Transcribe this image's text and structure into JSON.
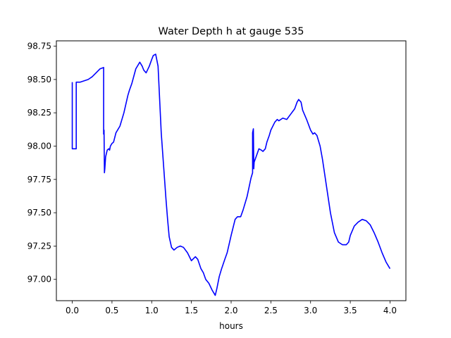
{
  "chart_data": {
    "type": "line",
    "title": "Water Depth h at gauge 535",
    "xlabel": "hours",
    "ylabel": "",
    "xlim": [
      -0.2,
      4.2
    ],
    "ylim": [
      96.84,
      98.79
    ],
    "xticks": [
      0.0,
      0.5,
      1.0,
      1.5,
      2.0,
      2.5,
      3.0,
      3.5,
      4.0
    ],
    "xtick_labels": [
      "0.0",
      "0.5",
      "1.0",
      "1.5",
      "2.0",
      "2.5",
      "3.0",
      "3.5",
      "4.0"
    ],
    "yticks": [
      97.0,
      97.25,
      97.5,
      97.75,
      98.0,
      98.25,
      98.5,
      98.75
    ],
    "ytick_labels": [
      "97.00",
      "97.25",
      "97.50",
      "97.75",
      "98.00",
      "98.25",
      "98.50",
      "98.75"
    ],
    "grid": false,
    "series": [
      {
        "color": "#0000ff",
        "x": [
          0.0,
          0.0,
          0.05,
          0.05,
          0.1,
          0.2,
          0.25,
          0.3,
          0.35,
          0.395,
          0.395,
          0.4,
          0.405,
          0.41,
          0.42,
          0.44,
          0.46,
          0.47,
          0.48,
          0.5,
          0.52,
          0.55,
          0.6,
          0.65,
          0.7,
          0.72,
          0.75,
          0.8,
          0.85,
          0.88,
          0.9,
          0.93,
          0.97,
          1.0,
          1.02,
          1.05,
          1.08,
          1.1,
          1.12,
          1.15,
          1.18,
          1.2,
          1.22,
          1.25,
          1.28,
          1.32,
          1.36,
          1.4,
          1.45,
          1.5,
          1.55,
          1.58,
          1.62,
          1.65,
          1.68,
          1.72,
          1.76,
          1.8,
          1.82,
          1.85,
          1.88,
          1.92,
          1.95,
          2.0,
          2.05,
          2.08,
          2.12,
          2.15,
          2.2,
          2.25,
          2.27,
          2.27,
          2.28,
          2.285,
          2.285,
          2.29,
          2.32,
          2.35,
          2.38,
          2.4,
          2.43,
          2.45,
          2.48,
          2.5,
          2.55,
          2.58,
          2.6,
          2.65,
          2.7,
          2.75,
          2.8,
          2.83,
          2.85,
          2.88,
          2.9,
          2.95,
          3.0,
          3.03,
          3.05,
          3.08,
          3.12,
          3.15,
          3.2,
          3.25,
          3.3,
          3.35,
          3.4,
          3.45,
          3.48,
          3.5,
          3.55,
          3.6,
          3.65,
          3.7,
          3.75,
          3.8,
          3.85,
          3.9,
          3.95,
          4.0
        ],
        "y": [
          98.48,
          97.98,
          97.98,
          98.48,
          98.48,
          98.5,
          98.52,
          98.55,
          98.58,
          98.59,
          98.09,
          98.12,
          97.8,
          97.83,
          97.92,
          97.97,
          97.98,
          97.97,
          98.0,
          98.02,
          98.03,
          98.1,
          98.15,
          98.25,
          98.38,
          98.42,
          98.47,
          98.58,
          98.63,
          98.6,
          98.57,
          98.55,
          98.6,
          98.65,
          98.68,
          98.69,
          98.6,
          98.35,
          98.1,
          97.85,
          97.6,
          97.45,
          97.32,
          97.24,
          97.22,
          97.24,
          97.25,
          97.24,
          97.2,
          97.14,
          97.17,
          97.15,
          97.08,
          97.05,
          97.0,
          96.97,
          96.92,
          96.88,
          96.93,
          97.02,
          97.08,
          97.15,
          97.2,
          97.33,
          97.45,
          97.47,
          97.47,
          97.52,
          97.62,
          97.76,
          97.8,
          98.1,
          98.13,
          97.85,
          97.83,
          97.88,
          97.93,
          97.98,
          97.97,
          97.96,
          97.98,
          98.03,
          98.08,
          98.12,
          98.18,
          98.2,
          98.19,
          98.21,
          98.2,
          98.24,
          98.28,
          98.33,
          98.35,
          98.33,
          98.27,
          98.2,
          98.12,
          98.09,
          98.1,
          98.08,
          98.0,
          97.9,
          97.7,
          97.5,
          97.35,
          97.28,
          97.26,
          97.26,
          97.28,
          97.33,
          97.4,
          97.43,
          97.45,
          97.44,
          97.41,
          97.35,
          97.28,
          97.2,
          97.13,
          97.08
        ]
      }
    ]
  }
}
